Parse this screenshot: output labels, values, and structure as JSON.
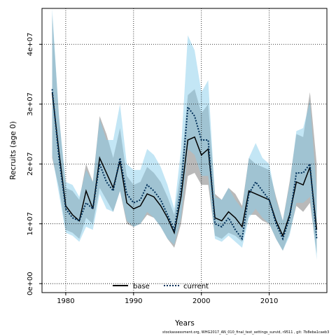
{
  "chart_data": {
    "type": "line",
    "title": "",
    "xlabel": "Years",
    "ylabel": "Recruits (age 0)",
    "xlim": [
      1976.5,
      2018.5
    ],
    "ylim": [
      -1500000,
      46000000
    ],
    "x_ticks": [
      1980,
      1990,
      2000,
      2010
    ],
    "x_tick_labels": [
      "1980",
      "1990",
      "2000",
      "2010"
    ],
    "y_ticks": [
      0,
      10000000,
      20000000,
      30000000,
      40000000
    ],
    "y_tick_labels": [
      "0e+00",
      "1e+07",
      "2e+07",
      "3e+07",
      "4e+07"
    ],
    "grid": true,
    "legend_position": "bottom",
    "x": [
      1978,
      1979,
      1980,
      1981,
      1982,
      1983,
      1984,
      1985,
      1986,
      1987,
      1988,
      1989,
      1990,
      1991,
      1992,
      1993,
      1994,
      1995,
      1996,
      1997,
      1998,
      1999,
      2000,
      2001,
      2002,
      2003,
      2004,
      2005,
      2006,
      2007,
      2008,
      2009,
      2010,
      2011,
      2012,
      2013,
      2014,
      2015,
      2016,
      2017
    ],
    "series": [
      {
        "name": "base",
        "color": "#000000",
        "band_color": "#808080",
        "line_style": "solid",
        "values": [
          32000000,
          22000000,
          13000000,
          11500000,
          10500000,
          15500000,
          12500000,
          21000000,
          18500000,
          16000000,
          20500000,
          13500000,
          12500000,
          13000000,
          15000000,
          14500000,
          13000000,
          11000000,
          8500000,
          14500000,
          24000000,
          24500000,
          21500000,
          22500000,
          11000000,
          10500000,
          12000000,
          11000000,
          9500000,
          15500000,
          15000000,
          14500000,
          14000000,
          10500000,
          8000000,
          11500000,
          17000000,
          16500000,
          19500000,
          9000000
        ],
        "lower": [
          21000000,
          16000000,
          9000000,
          8500000,
          7500000,
          11000000,
          10000000,
          16000000,
          14000000,
          12000000,
          15500000,
          10000000,
          9500000,
          10000000,
          11500000,
          11000000,
          9500000,
          7500000,
          6000000,
          10000000,
          18000000,
          18500000,
          16500000,
          16500000,
          8000000,
          7500000,
          8500000,
          8000000,
          7000000,
          11500000,
          11500000,
          10500000,
          10000000,
          7500000,
          5500000,
          8500000,
          13000000,
          12000000,
          13500000,
          5000000
        ],
        "upper": [
          45000000,
          28000000,
          16000000,
          15500000,
          14000000,
          20000000,
          17000000,
          28000000,
          25000000,
          21000000,
          26000000,
          18000000,
          16500000,
          17000000,
          19500000,
          18500000,
          17000000,
          14500000,
          11500000,
          19000000,
          31500000,
          32500000,
          28500000,
          30000000,
          15000000,
          14000000,
          16000000,
          15000000,
          13000000,
          21000000,
          20000000,
          19500000,
          19000000,
          14500000,
          10500000,
          17000000,
          25000000,
          24500000,
          32000000,
          20000000
        ]
      },
      {
        "name": "current",
        "color": "#00305a",
        "band_color": "#87ceeb",
        "line_style": "dotted",
        "values": [
          32500000,
          21000000,
          12500000,
          11000000,
          10500000,
          13500000,
          12500000,
          20000000,
          17000000,
          15500000,
          21000000,
          15000000,
          13500000,
          14000000,
          16500000,
          15500000,
          14000000,
          11500000,
          9000000,
          16000000,
          29500000,
          28000000,
          24000000,
          24000000,
          10000000,
          9500000,
          11000000,
          9000000,
          7500000,
          15000000,
          17000000,
          15500000,
          14000000,
          10000000,
          7500000,
          11000000,
          18500000,
          18500000,
          20000000,
          7500000
        ],
        "lower": [
          21500000,
          15000000,
          8500000,
          8000000,
          7000000,
          9500000,
          9000000,
          15000000,
          12500000,
          12000000,
          15500000,
          10500000,
          9500000,
          10000000,
          12000000,
          11000000,
          9500000,
          7500000,
          6500000,
          11000000,
          22500000,
          21500000,
          18000000,
          18000000,
          7500000,
          7000000,
          8000000,
          7000000,
          6000000,
          11000000,
          12500000,
          11000000,
          10000000,
          7500000,
          5500000,
          8000000,
          13500000,
          13500000,
          14500000,
          4000000
        ],
        "upper": [
          46000000,
          28000000,
          17000000,
          16500000,
          14500000,
          19000000,
          17000000,
          27500000,
          24000000,
          24000000,
          30000000,
          20000000,
          19000000,
          19000000,
          22500000,
          21500000,
          19500000,
          16500000,
          12500000,
          22500000,
          41500000,
          39000000,
          32000000,
          34000000,
          14500000,
          14000000,
          16000000,
          14000000,
          12500000,
          21000000,
          23500000,
          21000000,
          20000000,
          14000000,
          10500000,
          16500000,
          25500000,
          26000000,
          30500000,
          15500000
        ]
      }
    ]
  },
  "footnote": "stockassessment.org, WHG2017_AN_010_final_test_settings_survid, r9511 , git: 7b8eba1caeb3"
}
